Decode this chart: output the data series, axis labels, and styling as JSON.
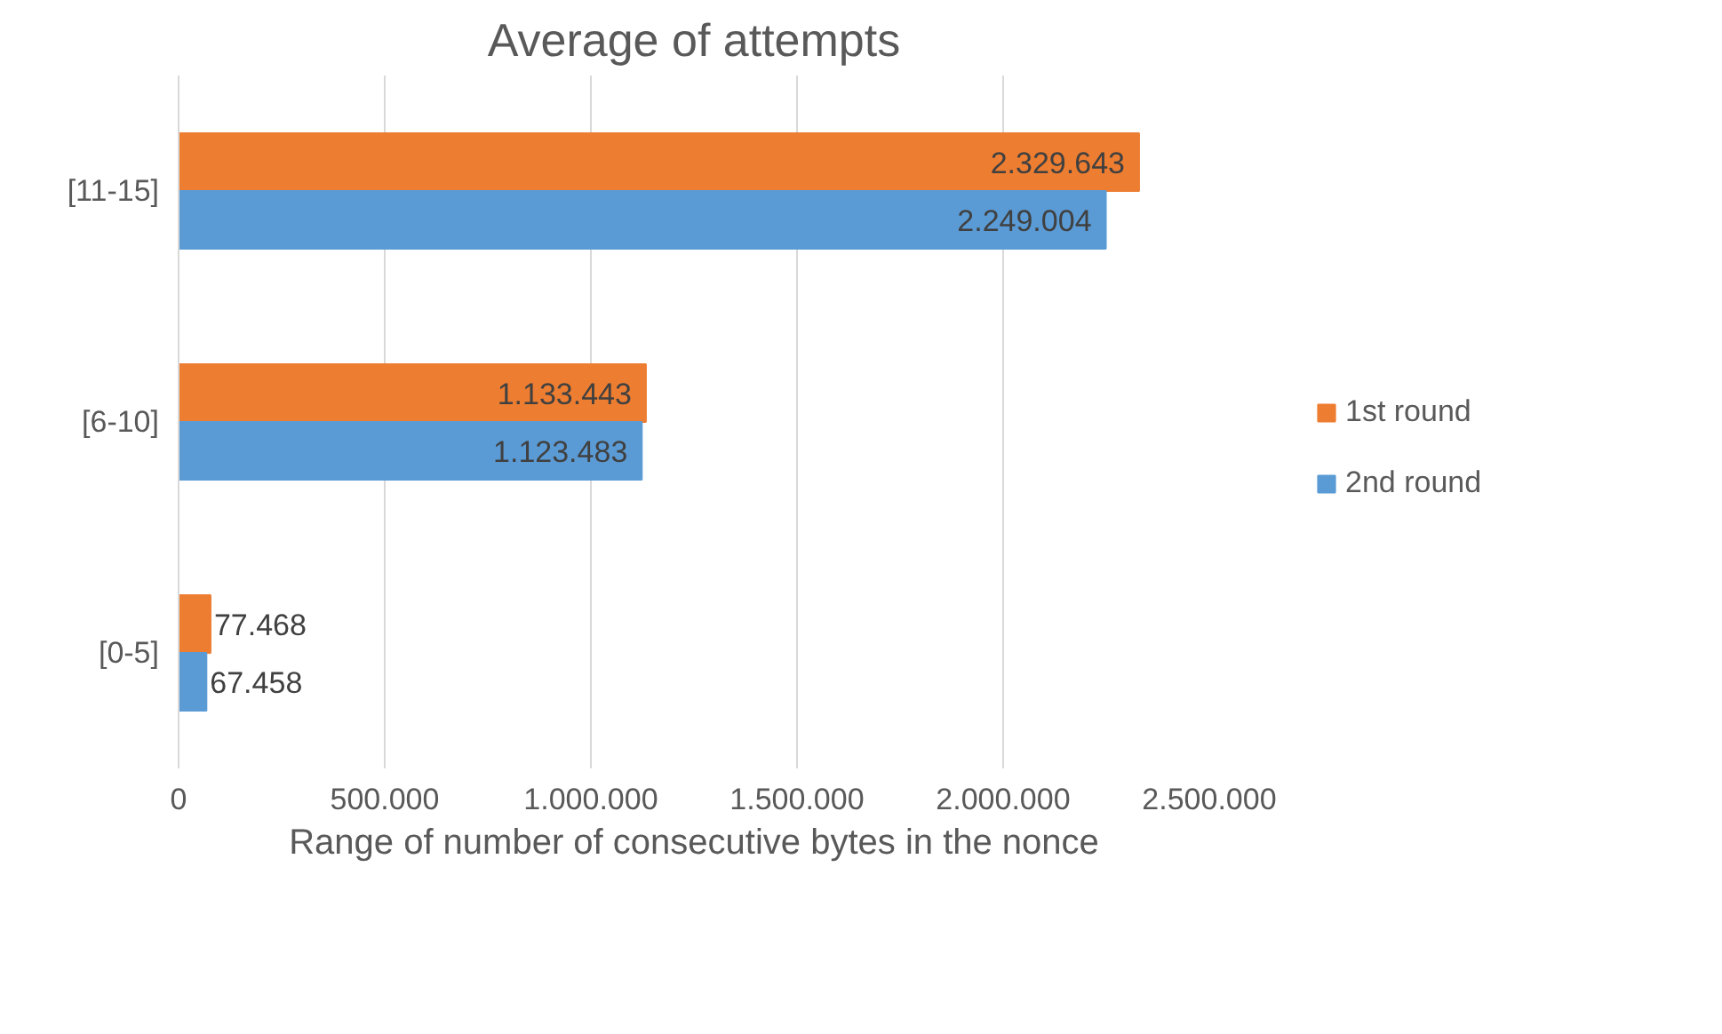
{
  "chart_data": {
    "type": "bar",
    "orientation": "horizontal",
    "title": "Average of attempts",
    "xlabel": "Range of number of consecutive bytes in the nonce",
    "categories": [
      "[11-15]",
      "[6-10]",
      "[0-5]"
    ],
    "series": [
      {
        "name": "1st round",
        "color": "#ed7d31",
        "values": [
          2329643,
          1133443,
          77468
        ],
        "value_labels": [
          "2.329.643",
          "1.133.443",
          "77.468"
        ]
      },
      {
        "name": "2nd round",
        "color": "#5b9bd5",
        "values": [
          2249004,
          1123483,
          67458
        ],
        "value_labels": [
          "2.249.004",
          "1.123.483",
          "67.458"
        ]
      }
    ],
    "xlim": [
      0,
      2500000
    ],
    "xticks": [
      {
        "value": 0,
        "label": "0"
      },
      {
        "value": 500000,
        "label": "500.000"
      },
      {
        "value": 1000000,
        "label": "1.000.000"
      },
      {
        "value": 1500000,
        "label": "1.500.000"
      },
      {
        "value": 2000000,
        "label": "2.000.000"
      },
      {
        "value": 2500000,
        "label": "2.500.000"
      }
    ],
    "grid": "x",
    "legend": "right"
  }
}
